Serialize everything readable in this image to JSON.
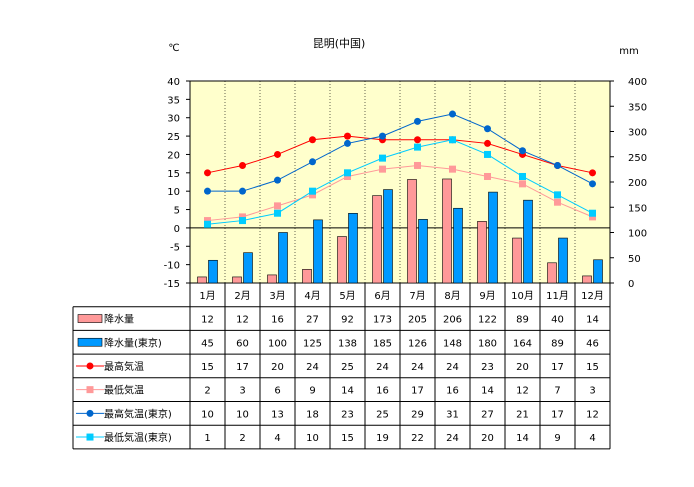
{
  "chart_data": {
    "type": "bar",
    "title": "昆明(中国)",
    "y_left_unit": "℃",
    "y_right_unit": "mm",
    "y_left_range": [
      -15,
      40
    ],
    "y_left_ticks": [
      40,
      35,
      30,
      25,
      20,
      15,
      10,
      5,
      0,
      -5,
      -10,
      -15
    ],
    "y_right_range": [
      0,
      400
    ],
    "y_right_ticks": [
      400,
      350,
      300,
      250,
      200,
      150,
      100,
      50,
      0
    ],
    "categories": [
      "1月",
      "2月",
      "3月",
      "4月",
      "5月",
      "6月",
      "7月",
      "8月",
      "9月",
      "10月",
      "11月",
      "12月"
    ],
    "series": [
      {
        "name": "降水量",
        "kind": "bar",
        "axis": "right",
        "color": "#ff9999",
        "values": [
          12,
          12,
          16,
          27,
          92,
          173,
          205,
          206,
          122,
          89,
          40,
          14
        ]
      },
      {
        "name": "降水量(東京)",
        "kind": "bar",
        "axis": "right",
        "color": "#0099ff",
        "values": [
          45,
          60,
          100,
          125,
          138,
          185,
          126,
          148,
          180,
          164,
          89,
          46
        ]
      },
      {
        "name": "最高気温",
        "kind": "line",
        "axis": "left",
        "color": "#ff0000",
        "marker": "circle",
        "values": [
          15,
          17,
          20,
          24,
          25,
          24,
          24,
          24,
          23,
          20,
          17,
          15
        ]
      },
      {
        "name": "最低気温",
        "kind": "line",
        "axis": "left",
        "color": "#ff9999",
        "marker": "square",
        "values": [
          2,
          3,
          6,
          9,
          14,
          16,
          17,
          16,
          14,
          12,
          7,
          3
        ]
      },
      {
        "name": "最高気温(東京)",
        "kind": "line",
        "axis": "left",
        "color": "#0066cc",
        "marker": "circle",
        "values": [
          10,
          10,
          13,
          18,
          23,
          25,
          29,
          31,
          27,
          21,
          17,
          12
        ]
      },
      {
        "name": "最低気温(東京)",
        "kind": "line",
        "axis": "left",
        "color": "#00ccff",
        "marker": "square",
        "values": [
          1,
          2,
          4,
          10,
          15,
          19,
          22,
          24,
          20,
          14,
          9,
          4
        ]
      }
    ],
    "plot_background": "#ffffcc",
    "grid": "vertical dotted",
    "legend": "data table below chart"
  }
}
